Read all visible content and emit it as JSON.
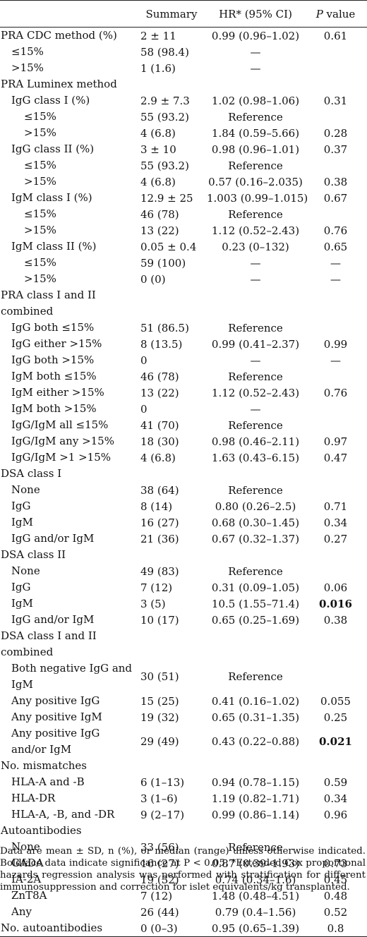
{
  "table": {
    "headers": {
      "label": "",
      "summary": "Summary",
      "hr": "HR* (95% CI)",
      "p_italic": "P",
      "p_rest": " value"
    },
    "rows": [
      {
        "label": "PRA CDC method (%)",
        "indent": 0,
        "summary": "2 ± 11",
        "hr": "0.99 (0.96–1.02)",
        "p": "0.61"
      },
      {
        "label": "≤15%",
        "indent": 1,
        "summary": "58 (98.4)",
        "hr": "—",
        "p": ""
      },
      {
        "label": ">15%",
        "indent": 1,
        "summary": "1 (1.6)",
        "hr": "—",
        "p": ""
      },
      {
        "label": "PRA Luminex method",
        "indent": 0,
        "summary": "",
        "hr": "",
        "p": ""
      },
      {
        "label": "IgG class I (%)",
        "indent": 1,
        "summary": "2.9 ± 7.3",
        "hr": "1.02 (0.98–1.06)",
        "p": "0.31"
      },
      {
        "label": "≤15%",
        "indent": 2,
        "summary": "55 (93.2)",
        "hr": "Reference",
        "p": ""
      },
      {
        "label": ">15%",
        "indent": 2,
        "summary": "4 (6.8)",
        "hr": "1.84 (0.59–5.66)",
        "p": "0.28"
      },
      {
        "label": "IgG class II (%)",
        "indent": 1,
        "summary": "3 ± 10",
        "hr": "0.98 (0.96–1.01)",
        "p": "0.37"
      },
      {
        "label": "≤15%",
        "indent": 2,
        "summary": "55 (93.2)",
        "hr": "Reference",
        "p": ""
      },
      {
        "label": ">15%",
        "indent": 2,
        "summary": "4 (6.8)",
        "hr": "0.57 (0.16–2.035)",
        "p": "0.38"
      },
      {
        "label": "IgM class I (%)",
        "indent": 1,
        "summary": "12.9 ± 25",
        "hr": "1.003 (0.99–1.015)",
        "p": "0.67"
      },
      {
        "label": "≤15%",
        "indent": 2,
        "summary": "46 (78)",
        "hr": "Reference",
        "p": ""
      },
      {
        "label": ">15%",
        "indent": 2,
        "summary": "13 (22)",
        "hr": "1.12 (0.52–2.43)",
        "p": "0.76"
      },
      {
        "label": "IgM class II (%)",
        "indent": 1,
        "summary": "0.05 ± 0.4",
        "hr": "0.23 (0–132)",
        "p": "0.65"
      },
      {
        "label": "≤15%",
        "indent": 2,
        "summary": "59 (100)",
        "hr": "—",
        "p": "—"
      },
      {
        "label": ">15%",
        "indent": 2,
        "summary": "0 (0)",
        "hr": "—",
        "p": "—"
      },
      {
        "label": "PRA class I and II combined",
        "indent": 0,
        "tall": true,
        "summary": "",
        "hr": "",
        "p": ""
      },
      {
        "label": "IgG both ≤15%",
        "indent": 1,
        "summary": "51 (86.5)",
        "hr": "Reference",
        "p": ""
      },
      {
        "label": "IgG either >15%",
        "indent": 1,
        "summary": "8 (13.5)",
        "hr": "0.99 (0.41–2.37)",
        "p": "0.99"
      },
      {
        "label": "IgG both >15%",
        "indent": 1,
        "summary": "0",
        "hr": "—",
        "p": "—"
      },
      {
        "label": "IgM both ≤15%",
        "indent": 1,
        "summary": "46 (78)",
        "hr": "Reference",
        "p": ""
      },
      {
        "label": "IgM either >15%",
        "indent": 1,
        "summary": "13 (22)",
        "hr": "1.12 (0.52–2.43)",
        "p": "0.76"
      },
      {
        "label": "IgM both >15%",
        "indent": 1,
        "summary": "0",
        "hr": "—",
        "p": ""
      },
      {
        "label": "IgG/IgM all ≤15%",
        "indent": 1,
        "summary": "41 (70)",
        "hr": "Reference",
        "p": ""
      },
      {
        "label": "IgG/IgM any >15%",
        "indent": 1,
        "summary": "18 (30)",
        "hr": "0.98 (0.46–2.11)",
        "p": "0.97"
      },
      {
        "label": "IgG/IgM >1 >15%",
        "indent": 1,
        "summary": "4 (6.8)",
        "hr": "1.63 (0.43–6.15)",
        "p": "0.47"
      },
      {
        "label": "DSA class I",
        "indent": 0,
        "summary": "",
        "hr": "",
        "p": ""
      },
      {
        "label": "None",
        "indent": 1,
        "summary": "38 (64)",
        "hr": "Reference",
        "p": ""
      },
      {
        "label": "IgG",
        "indent": 1,
        "summary": "8 (14)",
        "hr": "0.80 (0.26–2.5)",
        "p": "0.71"
      },
      {
        "label": "IgM",
        "indent": 1,
        "summary": "16 (27)",
        "hr": "0.68 (0.30–1.45)",
        "p": "0.34"
      },
      {
        "label": "IgG and/or IgM",
        "indent": 1,
        "summary": "21 (36)",
        "hr": "0.67 (0.32–1.37)",
        "p": "0.27"
      },
      {
        "label": "DSA class II",
        "indent": 0,
        "summary": "",
        "hr": "",
        "p": ""
      },
      {
        "label": "None",
        "indent": 1,
        "summary": "49 (83)",
        "hr": "Reference",
        "p": ""
      },
      {
        "label": "IgG",
        "indent": 1,
        "summary": "7 (12)",
        "hr": "0.31 (0.09–1.05)",
        "p": "0.06"
      },
      {
        "label": "IgM",
        "indent": 1,
        "summary": "3 (5)",
        "hr": "10.5 (1.55–71.4)",
        "p": "0.016",
        "bold": true
      },
      {
        "label": "IgG and/or IgM",
        "indent": 1,
        "summary": "10 (17)",
        "hr": "0.65 (0.25–1.69)",
        "p": "0.38"
      },
      {
        "label": "DSA class I and II combined",
        "indent": 0,
        "tall": true,
        "summary": "",
        "hr": "",
        "p": ""
      },
      {
        "label": "Both negative IgG and IgM",
        "indent": 1,
        "tall": true,
        "summary": "30 (51)",
        "hr": "Reference",
        "p": ""
      },
      {
        "label": "Any positive IgG",
        "indent": 1,
        "summary": "15 (25)",
        "hr": "0.41 (0.16–1.02)",
        "p": "0.055"
      },
      {
        "label": "Any positive IgM",
        "indent": 1,
        "summary": "19 (32)",
        "hr": "0.65 (0.31–1.35)",
        "p": "0.25"
      },
      {
        "label": "Any positive IgG and/or IgM",
        "indent": 1,
        "tall": true,
        "summary": "29 (49)",
        "hr": "0.43 (0.22–0.88)",
        "p": "0.021",
        "bold": true
      },
      {
        "label": "No. mismatches",
        "indent": 0,
        "summary": "",
        "hr": "",
        "p": ""
      },
      {
        "label": "HLA-A and -B",
        "indent": 1,
        "summary": "6 (1–13)",
        "hr": "0.94 (0.78–1.15)",
        "p": "0.59"
      },
      {
        "label": "HLA-DR",
        "indent": 1,
        "summary": "3 (1–6)",
        "hr": "1.19 (0.82–1.71)",
        "p": "0.34"
      },
      {
        "label": "HLA-A, -B, and -DR",
        "indent": 1,
        "summary": "9 (2–17)",
        "hr": "0.99 (0.86–1.14)",
        "p": "0.96"
      },
      {
        "label": "Autoantibodies",
        "indent": 0,
        "summary": "",
        "hr": "",
        "p": ""
      },
      {
        "label": "None",
        "indent": 1,
        "summary": "33 (56)",
        "hr": "Reference",
        "p": ""
      },
      {
        "label": "GADA",
        "indent": 1,
        "summary": "16 (27)",
        "hr": "0.87 (0.39–1.93)",
        "p": "0.73"
      },
      {
        "label": "IA-2A",
        "indent": 1,
        "summary": "19 (32)",
        "hr": "0.74 (0.34–1.6)",
        "p": "0.45"
      },
      {
        "label": "ZnT8A",
        "indent": 1,
        "summary": "7 (12)",
        "hr": "1.48 (0.48–4.51)",
        "p": "0.48"
      },
      {
        "label": "Any",
        "indent": 1,
        "summary": "26 (44)",
        "hr": "0.79 (0.4–1.56)",
        "p": "0.52"
      },
      {
        "label": "No. autoantibodies",
        "indent": 0,
        "summary": "0 (0–3)",
        "hr": "0.95 (0.65–1.39)",
        "p": "0.8"
      }
    ]
  },
  "footnote": "Data are mean ± SD, n (%), or median (range) unless otherwise indicated. Boldface data indicate significance at P < 0.05. *Extended Cox proportional hazards regression analysis was performed with stratification for different immunosuppression and correction for islet equivalents/kg transplanted."
}
